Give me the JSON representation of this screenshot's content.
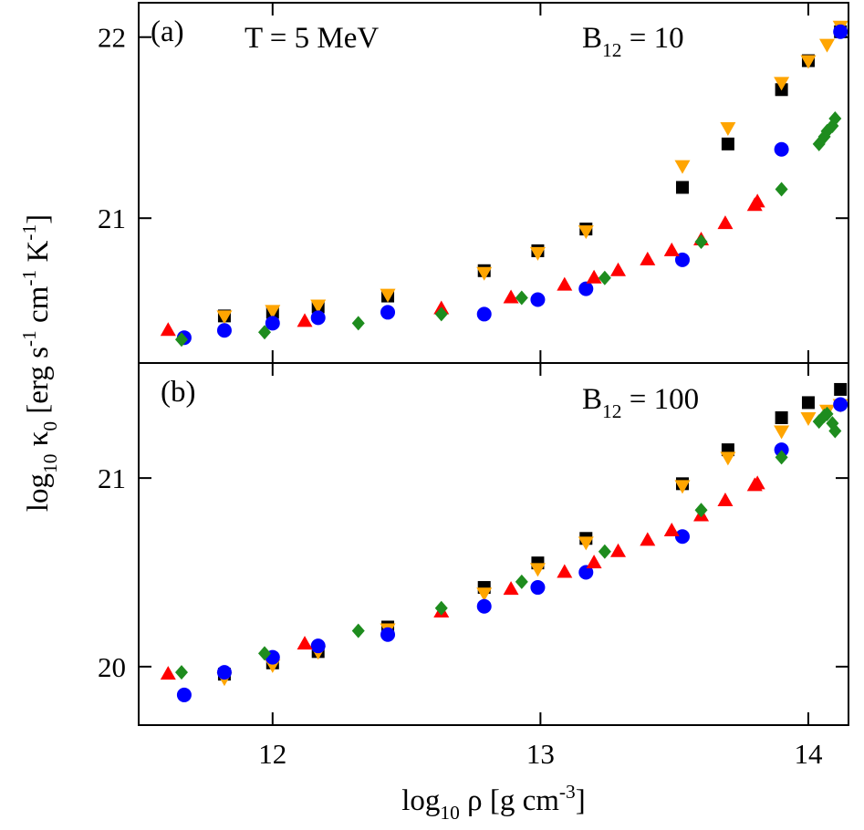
{
  "shared": {
    "xlabel": [
      {
        "text": "log"
      },
      {
        "text": "10",
        "shift": "sub"
      },
      {
        "text": " ρ [g cm"
      },
      {
        "text": "-3",
        "shift": "sup"
      },
      {
        "text": "]"
      }
    ],
    "ylabel": [
      {
        "text": "log"
      },
      {
        "text": "10",
        "shift": "sub"
      },
      {
        "text": " κ"
      },
      {
        "text": "0",
        "shift": "sub"
      },
      {
        "text": " [erg s"
      },
      {
        "text": "-1",
        "shift": "sup"
      },
      {
        "text": " cm"
      },
      {
        "text": "-1",
        "shift": "sup"
      },
      {
        "text": " K"
      },
      {
        "text": "-1",
        "shift": "sup"
      },
      {
        "text": "]"
      }
    ]
  },
  "chart_data": [
    {
      "type": "scatter",
      "annotations": [
        [
          {
            "text": "(a)"
          }
        ],
        [
          {
            "text": "T = 5 MeV"
          }
        ],
        [
          {
            "text": "B"
          },
          {
            "text": "12",
            "shift": "sub"
          },
          {
            "text": " = 10"
          }
        ]
      ],
      "xlim": [
        11.5,
        14.15
      ],
      "xticks": [
        12,
        13,
        14
      ],
      "ylim": [
        20.2,
        22.19
      ],
      "yticks": [
        21,
        22
      ],
      "xticklabels": false,
      "series": [
        {
          "marker": "square",
          "color": "#000000",
          "x": [
            11.82,
            12.0,
            12.17,
            12.43,
            12.79,
            12.99,
            13.17,
            13.53,
            13.7,
            13.9,
            14.0,
            14.12
          ],
          "values": [
            20.46,
            20.48,
            20.51,
            20.57,
            20.71,
            20.82,
            20.94,
            21.17,
            21.41,
            21.71,
            21.87,
            22.03
          ]
        },
        {
          "marker": "triangle-down",
          "color": "#ffa500",
          "x": [
            11.82,
            12.0,
            12.17,
            12.43,
            12.79,
            12.99,
            13.17,
            13.53,
            13.7,
            13.9,
            14.0,
            14.07,
            14.12
          ],
          "values": [
            20.46,
            20.49,
            20.52,
            20.58,
            20.7,
            20.81,
            20.93,
            21.29,
            21.5,
            21.75,
            21.87,
            21.96,
            22.06
          ]
        },
        {
          "marker": "circle",
          "color": "#0000ff",
          "x": [
            11.67,
            11.82,
            12.0,
            12.17,
            12.43,
            12.79,
            12.99,
            13.17,
            13.53,
            13.9,
            14.12
          ],
          "values": [
            20.34,
            20.38,
            20.42,
            20.45,
            20.48,
            20.47,
            20.55,
            20.61,
            20.77,
            21.38,
            22.03
          ]
        },
        {
          "marker": "triangle-up",
          "color": "#ff0000",
          "x": [
            11.61,
            12.12,
            12.63,
            12.89,
            13.09,
            13.2,
            13.29,
            13.4,
            13.49,
            13.6,
            13.69,
            13.8,
            13.81
          ],
          "values": [
            20.38,
            20.43,
            20.5,
            20.56,
            20.63,
            20.67,
            20.71,
            20.77,
            20.82,
            20.88,
            20.97,
            21.07,
            21.09
          ]
        },
        {
          "marker": "diamond",
          "color": "#1e8c1e",
          "x": [
            11.66,
            11.97,
            12.32,
            12.63,
            12.93,
            13.24,
            13.6,
            13.9,
            14.04,
            14.06,
            14.07,
            14.09,
            14.1
          ],
          "values": [
            20.33,
            20.37,
            20.42,
            20.47,
            20.56,
            20.67,
            20.87,
            21.16,
            21.41,
            21.45,
            21.48,
            21.51,
            21.55
          ]
        }
      ]
    },
    {
      "type": "scatter",
      "annotations": [
        [
          {
            "text": "(b)"
          }
        ],
        [
          {
            "text": "B"
          },
          {
            "text": "12",
            "shift": "sub"
          },
          {
            "text": " = 100"
          }
        ]
      ],
      "xlim": [
        11.5,
        14.15
      ],
      "xticks": [
        12,
        13,
        14
      ],
      "ylim": [
        19.69,
        21.61
      ],
      "yticks": [
        20,
        21
      ],
      "xticklabels": true,
      "series": [
        {
          "marker": "square",
          "color": "#000000",
          "x": [
            11.82,
            12.0,
            12.17,
            12.43,
            12.79,
            12.99,
            13.17,
            13.53,
            13.7,
            13.9,
            14.0,
            14.12
          ],
          "values": [
            19.96,
            20.02,
            20.08,
            20.21,
            20.42,
            20.55,
            20.68,
            20.97,
            21.15,
            21.32,
            21.4,
            21.47
          ]
        },
        {
          "marker": "triangle-down",
          "color": "#ffa500",
          "x": [
            11.82,
            12.0,
            12.17,
            12.43,
            12.79,
            12.99,
            13.17,
            13.53,
            13.7,
            13.9,
            14.0,
            14.07,
            14.12
          ],
          "values": [
            19.94,
            20.01,
            20.08,
            20.2,
            20.39,
            20.52,
            20.66,
            20.96,
            21.11,
            21.25,
            21.32,
            21.36,
            21.39
          ]
        },
        {
          "marker": "circle",
          "color": "#0000ff",
          "x": [
            11.67,
            11.82,
            12.0,
            12.17,
            12.43,
            12.79,
            12.99,
            13.17,
            13.53,
            13.9,
            14.12
          ],
          "values": [
            19.85,
            19.97,
            20.05,
            20.11,
            20.17,
            20.32,
            20.42,
            20.5,
            20.69,
            21.15,
            21.39
          ]
        },
        {
          "marker": "triangle-up",
          "color": "#ff0000",
          "x": [
            11.61,
            12.12,
            12.63,
            12.89,
            13.09,
            13.2,
            13.29,
            13.4,
            13.49,
            13.6,
            13.69,
            13.8,
            13.81
          ],
          "values": [
            19.96,
            20.12,
            20.29,
            20.41,
            20.5,
            20.55,
            20.61,
            20.67,
            20.72,
            20.8,
            20.88,
            20.96,
            20.97
          ]
        },
        {
          "marker": "diamond",
          "color": "#1e8c1e",
          "x": [
            11.66,
            11.97,
            12.32,
            12.63,
            12.93,
            13.24,
            13.6,
            13.9,
            14.04,
            14.06,
            14.07,
            14.09,
            14.1
          ],
          "values": [
            19.97,
            20.07,
            20.19,
            20.31,
            20.45,
            20.61,
            20.83,
            21.11,
            21.3,
            21.33,
            21.34,
            21.29,
            21.25
          ]
        }
      ]
    }
  ]
}
